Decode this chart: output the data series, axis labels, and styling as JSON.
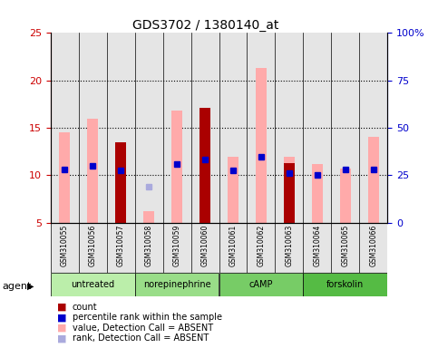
{
  "title": "GDS3702 / 1380140_at",
  "samples": [
    "GSM310055",
    "GSM310056",
    "GSM310057",
    "GSM310058",
    "GSM310059",
    "GSM310060",
    "GSM310061",
    "GSM310062",
    "GSM310063",
    "GSM310064",
    "GSM310065",
    "GSM310066"
  ],
  "groups": [
    {
      "label": "untreated",
      "indices": [
        0,
        1,
        2
      ]
    },
    {
      "label": "norepinephrine",
      "indices": [
        3,
        4,
        5
      ]
    },
    {
      "label": "cAMP",
      "indices": [
        6,
        7,
        8
      ]
    },
    {
      "label": "forskolin",
      "indices": [
        9,
        10,
        11
      ]
    }
  ],
  "group_colors": [
    "#bbeeaa",
    "#99dd88",
    "#77cc66",
    "#55bb44"
  ],
  "pink_bar_top": [
    14.5,
    16.0,
    13.5,
    6.2,
    16.8,
    17.1,
    12.0,
    21.3,
    12.0,
    11.2,
    10.7,
    14.1
  ],
  "red_bar_top": [
    null,
    null,
    13.5,
    null,
    null,
    17.1,
    null,
    null,
    11.3,
    null,
    null,
    null
  ],
  "red_bar_bottom": [
    null,
    null,
    5.0,
    null,
    null,
    5.0,
    null,
    null,
    5.0,
    null,
    null,
    null
  ],
  "blue_square_y": [
    10.6,
    11.0,
    10.5,
    null,
    11.2,
    11.7,
    10.5,
    12.0,
    10.2,
    10.0,
    10.6,
    10.6
  ],
  "lavender_square_y": [
    null,
    null,
    null,
    8.8,
    null,
    null,
    null,
    null,
    null,
    null,
    null,
    null
  ],
  "ylim_left": [
    5,
    25
  ],
  "ylim_right": [
    0,
    100
  ],
  "yticks_left": [
    5,
    10,
    15,
    20,
    25
  ],
  "yticks_right": [
    0,
    25,
    50,
    75,
    100
  ],
  "yticklabels_right": [
    "0",
    "25",
    "50",
    "75",
    "100%"
  ],
  "yticklabels_left": [
    "5",
    "10",
    "15",
    "20",
    "25"
  ],
  "left_axis_color": "#cc0000",
  "right_axis_color": "#0000cc",
  "pink_color": "#ffaaaa",
  "red_color": "#aa0000",
  "blue_color": "#0000cc",
  "lavender_color": "#aaaadd",
  "sample_bg": "#cccccc",
  "bar_width": 0.4,
  "legend_labels": [
    "count",
    "percentile rank within the sample",
    "value, Detection Call = ABSENT",
    "rank, Detection Call = ABSENT"
  ],
  "legend_colors": [
    "#aa0000",
    "#0000cc",
    "#ffaaaa",
    "#aaaadd"
  ]
}
